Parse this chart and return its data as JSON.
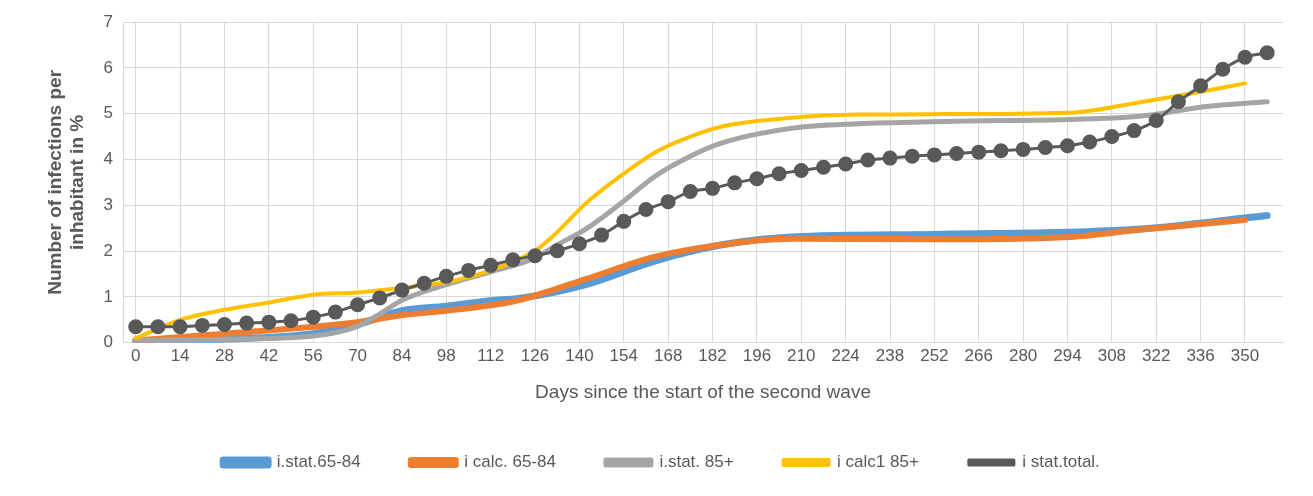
{
  "chart_data": {
    "type": "line",
    "xlabel": "Days since the start of the second wave",
    "ylabel": "Number of infections per inhabitant in %",
    "xlim": [
      -4,
      362
    ],
    "xticks": [
      0,
      14,
      28,
      42,
      56,
      70,
      84,
      98,
      112,
      126,
      140,
      154,
      168,
      182,
      196,
      210,
      224,
      238,
      252,
      266,
      280,
      294,
      308,
      322,
      336,
      350
    ],
    "ylim": [
      0,
      7
    ],
    "yticks": [
      0,
      1,
      2,
      3,
      4,
      5,
      6,
      7
    ],
    "grid": true,
    "legend": "bottom",
    "marker": "none",
    "line_style": "solid",
    "series": [
      {
        "name": "i.stat.65-84",
        "color": "#5b9bd5",
        "x": [
          0,
          28,
          56,
          70,
          84,
          98,
          112,
          121,
          142,
          164,
          185,
          207,
          255,
          316,
          357
        ],
        "values": [
          0.05,
          0.08,
          0.2,
          0.4,
          0.7,
          0.8,
          0.92,
          0.97,
          1.27,
          1.79,
          2.14,
          2.31,
          2.37,
          2.48,
          2.78
        ]
      },
      {
        "name": "i calc. 65-84",
        "color": "#ed7d31",
        "x": [
          0,
          28,
          56,
          70,
          84,
          98,
          112,
          121,
          142,
          164,
          185,
          207,
          255,
          295,
          316,
          350
        ],
        "values": [
          0.05,
          0.2,
          0.35,
          0.45,
          0.6,
          0.7,
          0.82,
          0.93,
          1.39,
          1.88,
          2.14,
          2.27,
          2.26,
          2.31,
          2.46,
          2.68
        ]
      },
      {
        "name": "i.stat. 85+",
        "color": "#a5a5a5",
        "x": [
          0,
          28,
          56,
          70,
          77,
          84,
          98,
          112,
          126,
          132,
          142,
          153,
          164,
          175,
          185,
          207,
          228,
          255,
          316,
          337,
          357
        ],
        "values": [
          0.05,
          0.08,
          0.15,
          0.36,
          0.63,
          0.93,
          1.27,
          1.55,
          1.85,
          2.1,
          2.48,
          3.04,
          3.64,
          4.07,
          4.36,
          4.68,
          4.78,
          4.83,
          4.94,
          5.15,
          5.26
        ]
      },
      {
        "name": "i calc1 85+",
        "color": "#ffc000",
        "x": [
          0,
          14,
          28,
          42,
          56,
          70,
          84,
          98,
          112,
          126,
          132,
          142,
          153,
          164,
          175,
          185,
          207,
          228,
          255,
          295,
          316,
          337,
          350
        ],
        "values": [
          0.1,
          0.5,
          0.72,
          0.88,
          1.05,
          1.1,
          1.2,
          1.32,
          1.58,
          2.01,
          2.35,
          3.04,
          3.64,
          4.16,
          4.5,
          4.72,
          4.91,
          4.98,
          4.99,
          5.02,
          5.24,
          5.49,
          5.66
        ]
      },
      {
        "name": "i stat.total.",
        "color": "#595959",
        "marker": "circle",
        "x": [
          0,
          7,
          14,
          21,
          28,
          35,
          42,
          49,
          56,
          63,
          70,
          77,
          84,
          91,
          98,
          105,
          112,
          119,
          126,
          133,
          140,
          147,
          154,
          161,
          168,
          175,
          182,
          189,
          196,
          203,
          210,
          217,
          224,
          231,
          238,
          245,
          252,
          259,
          266,
          273,
          280,
          287,
          294,
          301,
          308,
          315,
          322,
          329,
          336,
          343,
          350,
          357
        ],
        "values": [
          0.35,
          0.35,
          0.35,
          0.38,
          0.4,
          0.43,
          0.45,
          0.48,
          0.56,
          0.67,
          0.83,
          0.98,
          1.15,
          1.3,
          1.45,
          1.58,
          1.69,
          1.81,
          1.9,
          2.01,
          2.16,
          2.35,
          2.65,
          2.91,
          3.08,
          3.3,
          3.37,
          3.49,
          3.58,
          3.69,
          3.76,
          3.83,
          3.9,
          3.99,
          4.03,
          4.07,
          4.1,
          4.13,
          4.16,
          4.19,
          4.22,
          4.26,
          4.3,
          4.38,
          4.5,
          4.63,
          4.85,
          5.26,
          5.61,
          5.97,
          6.23,
          6.33
        ]
      }
    ]
  }
}
